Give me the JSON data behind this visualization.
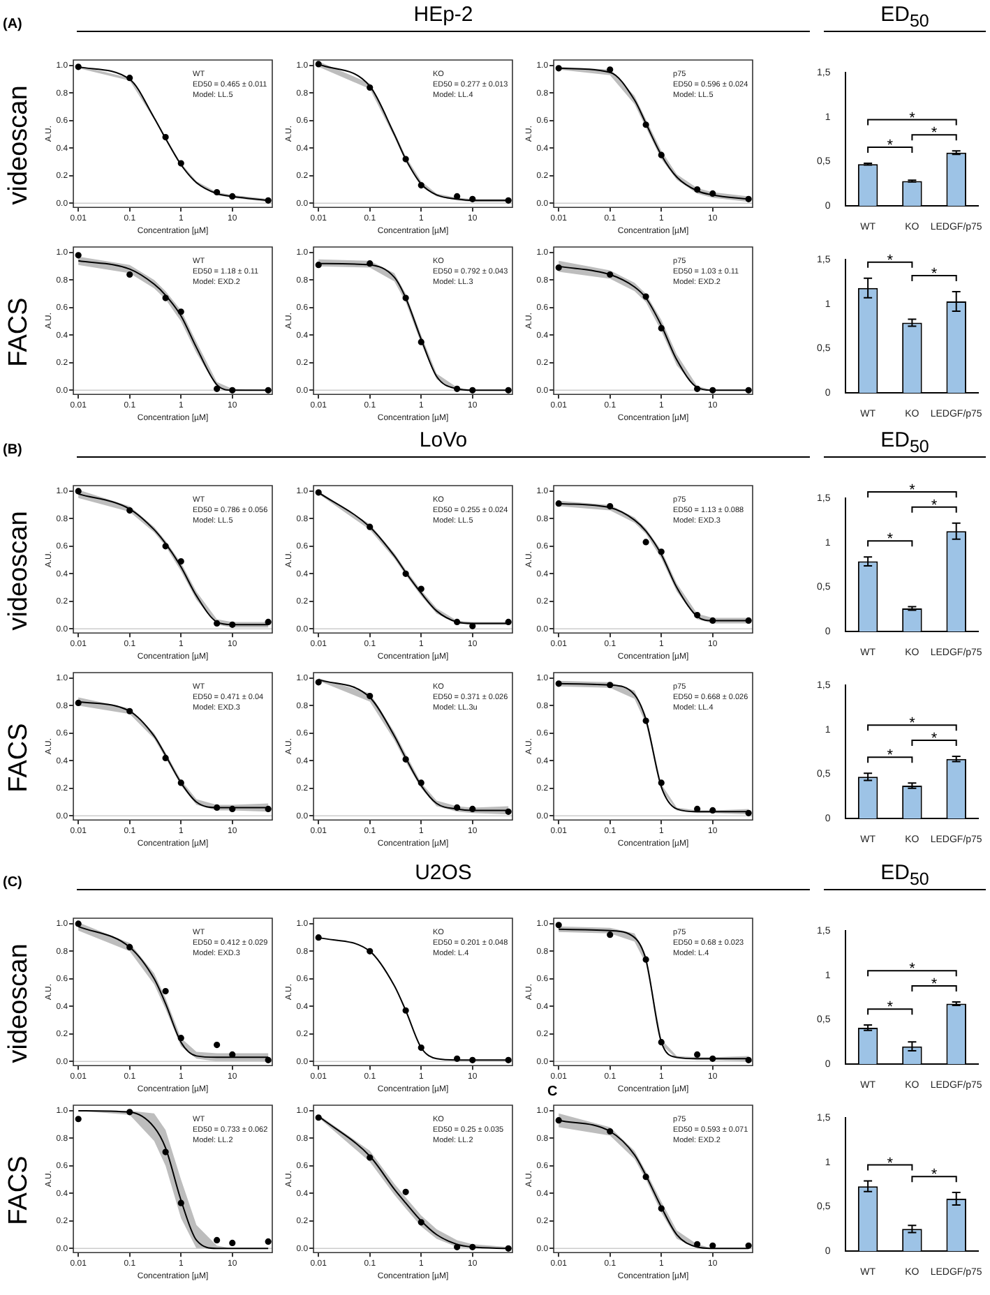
{
  "chart_data": [
    {
      "type": "line",
      "xlabel": "Concentration [µM]",
      "ylabel": "A.U.",
      "log": "x",
      "xlim": [
        0.008,
        60
      ],
      "xticks": [
        0.01,
        0.1,
        1,
        10
      ],
      "ylim": [
        -0.03,
        1.04
      ],
      "yticks": [
        {
          "value": 0,
          "label": "0.0"
        },
        0.2,
        0.4,
        0.6,
        0.8,
        {
          "value": 1,
          "label": "1.0"
        }
      ],
      "ref_lines": [
        {
          "axis": "y",
          "value": 0,
          "color": "#cccccc"
        }
      ],
      "annotations": [
        "WT",
        "ED50 = 0.465 ± 0.011",
        "Model: LL.5",
        "videoscan",
        "(A)"
      ],
      "series": [
        {
          "type": "scatter",
          "marker": "circle",
          "color": "#000000",
          "x": [
            0.01,
            0.1,
            0.5,
            1,
            5,
            10,
            50
          ],
          "values": [
            0.99,
            0.91,
            0.48,
            0.29,
            0.08,
            0.05,
            0.02
          ]
        },
        {
          "type": "line",
          "color": "#000000",
          "x": [
            0.01,
            0.1,
            0.3,
            0.5,
            1,
            2,
            5,
            10,
            50
          ],
          "values": [
            0.99,
            0.9,
            0.62,
            0.47,
            0.28,
            0.15,
            0.07,
            0.05,
            0.02
          ],
          "lower": [
            0.98,
            0.89,
            0.61,
            0.46,
            0.27,
            0.14,
            0.06,
            0.04,
            0.01
          ],
          "upper": [
            1.0,
            0.91,
            0.63,
            0.48,
            0.29,
            0.16,
            0.08,
            0.06,
            0.03
          ]
        }
      ]
    },
    {
      "type": "line",
      "title": "HEp-2",
      "xlabel": "Concentration [µM]",
      "ylabel": "A.U.",
      "log": "x",
      "xlim": [
        0.008,
        60
      ],
      "xticks": [
        0.01,
        0.1,
        1,
        10
      ],
      "ylim": [
        -0.03,
        1.04
      ],
      "yticks": [
        {
          "value": 0,
          "label": "0.0"
        },
        0.2,
        0.4,
        0.6,
        0.8,
        {
          "value": 1,
          "label": "1.0"
        }
      ],
      "ref_lines": [
        {
          "axis": "y",
          "value": 0,
          "color": "#cccccc"
        }
      ],
      "annotations": [
        "KO",
        "ED50 = 0.277 ± 0.013",
        "Model: LL.4"
      ],
      "series": [
        {
          "type": "scatter",
          "marker": "circle",
          "color": "#000000",
          "x": [
            0.01,
            0.1,
            0.5,
            1,
            5,
            10,
            50
          ],
          "values": [
            1.01,
            0.84,
            0.32,
            0.13,
            0.05,
            0.03,
            0.02
          ]
        },
        {
          "type": "line",
          "color": "#000000",
          "x": [
            0.01,
            0.1,
            0.3,
            0.5,
            1,
            2,
            5,
            10,
            50
          ],
          "values": [
            1.01,
            0.85,
            0.5,
            0.32,
            0.14,
            0.06,
            0.03,
            0.02,
            0.02
          ],
          "lower": [
            0.99,
            0.83,
            0.48,
            0.3,
            0.12,
            0.05,
            0.02,
            0.01,
            0.01
          ],
          "upper": [
            1.03,
            0.87,
            0.52,
            0.34,
            0.16,
            0.07,
            0.04,
            0.03,
            0.03
          ]
        }
      ]
    },
    {
      "type": "line",
      "xlabel": "Concentration [µM]",
      "ylabel": "A.U.",
      "log": "x",
      "xlim": [
        0.008,
        60
      ],
      "xticks": [
        0.01,
        0.1,
        1,
        10
      ],
      "ylim": [
        -0.03,
        1.04
      ],
      "yticks": [
        {
          "value": 0,
          "label": "0.0"
        },
        0.2,
        0.4,
        0.6,
        0.8,
        {
          "value": 1,
          "label": "1.0"
        }
      ],
      "ref_lines": [
        {
          "axis": "y",
          "value": 0,
          "color": "#cccccc"
        }
      ],
      "annotations": [
        "p75",
        "ED50 = 0.596 ± 0.024",
        "Model: LL.5"
      ],
      "series": [
        {
          "type": "scatter",
          "marker": "circle",
          "color": "#000000",
          "x": [
            0.01,
            0.1,
            0.5,
            1,
            5,
            10,
            50
          ],
          "values": [
            0.98,
            0.97,
            0.57,
            0.35,
            0.1,
            0.07,
            0.03
          ]
        },
        {
          "type": "line",
          "color": "#000000",
          "x": [
            0.01,
            0.1,
            0.3,
            0.5,
            1,
            2,
            5,
            10,
            50
          ],
          "values": [
            0.98,
            0.95,
            0.75,
            0.58,
            0.35,
            0.19,
            0.09,
            0.06,
            0.03
          ],
          "lower": [
            0.97,
            0.93,
            0.72,
            0.55,
            0.32,
            0.17,
            0.07,
            0.04,
            0.01
          ],
          "upper": [
            0.99,
            0.97,
            0.78,
            0.61,
            0.38,
            0.21,
            0.11,
            0.08,
            0.05
          ]
        }
      ]
    },
    {
      "type": "bar",
      "title": "ED$_{50}$",
      "categories": [
        "WT",
        "KO",
        "LEDGF/p75"
      ],
      "values": [
        0.47,
        0.28,
        0.6
      ],
      "errors": [
        0.01,
        0.01,
        0.02
      ],
      "color": "#9dc3e6",
      "ylim": [
        0,
        1.5
      ],
      "yticks": [
        0,
        {
          "value": 0.5,
          "label": "0,5"
        },
        1,
        {
          "value": 1.5,
          "label": "1,5"
        }
      ],
      "annotations": [
        "*",
        "*",
        "*"
      ]
    },
    {
      "type": "line",
      "xlabel": "Concentration [µM]",
      "ylabel": "A.U.",
      "log": "x",
      "xlim": [
        0.008,
        60
      ],
      "xticks": [
        0.01,
        0.1,
        1,
        10
      ],
      "ylim": [
        -0.03,
        1.04
      ],
      "yticks": [
        {
          "value": 0,
          "label": "0.0"
        },
        0.2,
        0.4,
        0.6,
        0.8,
        {
          "value": 1,
          "label": "1.0"
        }
      ],
      "ref_lines": [
        {
          "axis": "y",
          "value": 0,
          "color": "#cccccc"
        }
      ],
      "annotations": [
        "WT",
        "ED50 = 1.18 ± 0.11",
        "Model: EXD.2",
        "FACS"
      ],
      "series": [
        {
          "type": "scatter",
          "marker": "circle",
          "color": "#000000",
          "x": [
            0.01,
            0.1,
            0.5,
            1,
            5,
            10,
            50
          ],
          "values": [
            0.98,
            0.84,
            0.67,
            0.57,
            0.01,
            0.0,
            0.0
          ]
        },
        {
          "type": "line",
          "color": "#000000",
          "x": [
            0.01,
            0.1,
            0.3,
            0.5,
            1,
            2,
            5,
            10,
            50
          ],
          "values": [
            0.94,
            0.88,
            0.77,
            0.69,
            0.54,
            0.31,
            0.04,
            0.0,
            0.0
          ],
          "lower": [
            0.91,
            0.85,
            0.74,
            0.66,
            0.5,
            0.27,
            0.02,
            0.0,
            0.0
          ],
          "upper": [
            0.97,
            0.91,
            0.8,
            0.72,
            0.58,
            0.35,
            0.06,
            0.01,
            0.0
          ]
        }
      ]
    },
    {
      "type": "line",
      "xlabel": "Concentration [µM]",
      "ylabel": "A.U.",
      "log": "x",
      "xlim": [
        0.008,
        60
      ],
      "xticks": [
        0.01,
        0.1,
        1,
        10
      ],
      "ylim": [
        -0.03,
        1.04
      ],
      "yticks": [
        {
          "value": 0,
          "label": "0.0"
        },
        0.2,
        0.4,
        0.6,
        0.8,
        {
          "value": 1,
          "label": "1.0"
        }
      ],
      "ref_lines": [
        {
          "axis": "y",
          "value": 0,
          "color": "#cccccc"
        }
      ],
      "annotations": [
        "KO",
        "ED50 = 0.792 ± 0.043",
        "Model: LL.3"
      ],
      "series": [
        {
          "type": "scatter",
          "marker": "circle",
          "color": "#000000",
          "x": [
            0.01,
            0.1,
            0.5,
            1,
            5,
            10,
            50
          ],
          "values": [
            0.91,
            0.92,
            0.67,
            0.35,
            0.01,
            0.0,
            0.0
          ]
        },
        {
          "type": "line",
          "color": "#000000",
          "x": [
            0.01,
            0.1,
            0.3,
            0.5,
            1,
            2,
            5,
            10,
            50
          ],
          "values": [
            0.92,
            0.91,
            0.82,
            0.67,
            0.37,
            0.1,
            0.01,
            0.0,
            0.0
          ],
          "lower": [
            0.9,
            0.89,
            0.79,
            0.64,
            0.34,
            0.08,
            0.0,
            0.0,
            0.0
          ],
          "upper": [
            0.95,
            0.94,
            0.85,
            0.7,
            0.4,
            0.12,
            0.02,
            0.0,
            0.0
          ]
        }
      ]
    },
    {
      "type": "line",
      "xlabel": "Concentration [µM]",
      "ylabel": "A.U.",
      "log": "x",
      "xlim": [
        0.008,
        60
      ],
      "xticks": [
        0.01,
        0.1,
        1,
        10
      ],
      "ylim": [
        -0.03,
        1.04
      ],
      "yticks": [
        {
          "value": 0,
          "label": "0.0"
        },
        0.2,
        0.4,
        0.6,
        0.8,
        {
          "value": 1,
          "label": "1.0"
        }
      ],
      "ref_lines": [
        {
          "axis": "y",
          "value": 0,
          "color": "#cccccc"
        }
      ],
      "annotations": [
        "p75",
        "ED50 = 1.03 ± 0.11",
        "Model: EXD.2"
      ],
      "series": [
        {
          "type": "scatter",
          "marker": "circle",
          "color": "#000000",
          "x": [
            0.01,
            0.1,
            0.5,
            1,
            5,
            10,
            50
          ],
          "values": [
            0.89,
            0.84,
            0.68,
            0.45,
            0.01,
            0.0,
            0.0
          ]
        },
        {
          "type": "line",
          "color": "#000000",
          "x": [
            0.01,
            0.1,
            0.3,
            0.5,
            1,
            2,
            5,
            10,
            50
          ],
          "values": [
            0.9,
            0.84,
            0.75,
            0.67,
            0.47,
            0.22,
            0.02,
            0.0,
            0.0
          ],
          "lower": [
            0.86,
            0.81,
            0.72,
            0.64,
            0.43,
            0.18,
            0.01,
            0.0,
            0.0
          ],
          "upper": [
            0.94,
            0.87,
            0.78,
            0.7,
            0.51,
            0.26,
            0.03,
            0.0,
            0.0
          ]
        }
      ]
    },
    {
      "type": "bar",
      "categories": [
        "WT",
        "KO",
        "LEDGF/p75"
      ],
      "values": [
        1.18,
        0.79,
        1.03
      ],
      "errors": [
        0.11,
        0.04,
        0.11
      ],
      "color": "#9dc3e6",
      "ylim": [
        0,
        1.5
      ],
      "yticks": [
        0,
        {
          "value": 0.5,
          "label": "0,5"
        },
        1,
        {
          "value": 1.5,
          "label": "1,5"
        }
      ],
      "annotations": [
        "*",
        "*"
      ]
    },
    {
      "type": "line",
      "xlabel": "Concentration [µM]",
      "ylabel": "A.U.",
      "log": "x",
      "xlim": [
        0.008,
        60
      ],
      "xticks": [
        0.01,
        0.1,
        1,
        10
      ],
      "ylim": [
        -0.03,
        1.04
      ],
      "yticks": [
        {
          "value": 0,
          "label": "0.0"
        },
        0.2,
        0.4,
        0.6,
        0.8,
        {
          "value": 1,
          "label": "1.0"
        }
      ],
      "ref_lines": [
        {
          "axis": "y",
          "value": 0,
          "color": "#cccccc"
        }
      ],
      "annotations": [
        "WT",
        "ED50 = 0.786 ± 0.056",
        "Model: LL.5",
        "videoscan",
        "(B)"
      ],
      "series": [
        {
          "type": "scatter",
          "marker": "circle",
          "color": "#000000",
          "x": [
            0.01,
            0.1,
            0.5,
            1,
            5,
            10,
            50
          ],
          "values": [
            1.0,
            0.86,
            0.6,
            0.49,
            0.04,
            0.03,
            0.05
          ]
        },
        {
          "type": "line",
          "color": "#000000",
          "x": [
            0.01,
            0.1,
            0.3,
            0.5,
            1,
            2,
            5,
            10,
            50
          ],
          "values": [
            0.98,
            0.87,
            0.72,
            0.62,
            0.45,
            0.24,
            0.05,
            0.03,
            0.03
          ],
          "lower": [
            0.95,
            0.85,
            0.7,
            0.6,
            0.42,
            0.21,
            0.03,
            0.01,
            0.01
          ],
          "upper": [
            1.01,
            0.89,
            0.74,
            0.64,
            0.48,
            0.27,
            0.07,
            0.05,
            0.05
          ]
        }
      ]
    },
    {
      "type": "line",
      "title": "LoVo",
      "xlabel": "Concentration [µM]",
      "ylabel": "A.U.",
      "log": "x",
      "xlim": [
        0.008,
        60
      ],
      "xticks": [
        0.01,
        0.1,
        1,
        10
      ],
      "ylim": [
        -0.03,
        1.04
      ],
      "yticks": [
        {
          "value": 0,
          "label": "0.0"
        },
        0.2,
        0.4,
        0.6,
        0.8,
        {
          "value": 1,
          "label": "1.0"
        }
      ],
      "ref_lines": [
        {
          "axis": "y",
          "value": 0,
          "color": "#cccccc"
        }
      ],
      "annotations": [
        "KO",
        "ED50 = 0.255 ± 0.024",
        "Model: LL.5"
      ],
      "series": [
        {
          "type": "scatter",
          "marker": "circle",
          "color": "#000000",
          "x": [
            0.01,
            0.1,
            0.5,
            1,
            5,
            10,
            50
          ],
          "values": [
            0.99,
            0.74,
            0.4,
            0.29,
            0.05,
            0.02,
            0.05
          ]
        },
        {
          "type": "line",
          "color": "#000000",
          "x": [
            0.01,
            0.1,
            0.3,
            0.5,
            1,
            2,
            5,
            10,
            50
          ],
          "values": [
            0.99,
            0.74,
            0.53,
            0.41,
            0.26,
            0.13,
            0.05,
            0.04,
            0.04
          ],
          "lower": [
            0.98,
            0.72,
            0.51,
            0.39,
            0.24,
            0.11,
            0.04,
            0.03,
            0.03
          ],
          "upper": [
            1.0,
            0.76,
            0.55,
            0.43,
            0.28,
            0.15,
            0.06,
            0.05,
            0.05
          ]
        }
      ]
    },
    {
      "type": "line",
      "xlabel": "Concentration [µM]",
      "ylabel": "A.U.",
      "log": "x",
      "xlim": [
        0.008,
        60
      ],
      "xticks": [
        0.01,
        0.1,
        1,
        10
      ],
      "ylim": [
        -0.03,
        1.04
      ],
      "yticks": [
        {
          "value": 0,
          "label": "0.0"
        },
        0.2,
        0.4,
        0.6,
        0.8,
        {
          "value": 1,
          "label": "1.0"
        }
      ],
      "ref_lines": [
        {
          "axis": "y",
          "value": 0,
          "color": "#cccccc"
        }
      ],
      "annotations": [
        "p75",
        "ED50 = 1.13 ± 0.088",
        "Model: EXD.3"
      ],
      "series": [
        {
          "type": "scatter",
          "marker": "circle",
          "color": "#000000",
          "x": [
            0.01,
            0.1,
            0.5,
            1,
            5,
            10,
            50
          ],
          "values": [
            0.91,
            0.89,
            0.63,
            0.56,
            0.1,
            0.06,
            0.06
          ]
        },
        {
          "type": "line",
          "color": "#000000",
          "x": [
            0.01,
            0.1,
            0.3,
            0.5,
            1,
            2,
            5,
            10,
            50
          ],
          "values": [
            0.91,
            0.88,
            0.79,
            0.71,
            0.54,
            0.3,
            0.09,
            0.06,
            0.06
          ],
          "lower": [
            0.89,
            0.86,
            0.77,
            0.69,
            0.51,
            0.27,
            0.07,
            0.04,
            0.04
          ],
          "upper": [
            0.93,
            0.9,
            0.81,
            0.73,
            0.57,
            0.33,
            0.11,
            0.08,
            0.08
          ]
        }
      ]
    },
    {
      "type": "bar",
      "title": "ED$_{50}$",
      "categories": [
        "WT",
        "KO",
        "LEDGF/p75"
      ],
      "values": [
        0.79,
        0.26,
        1.13
      ],
      "errors": [
        0.05,
        0.02,
        0.09
      ],
      "color": "#9dc3e6",
      "ylim": [
        0,
        1.5
      ],
      "yticks": [
        0,
        {
          "value": 0.5,
          "label": "0,5"
        },
        1,
        {
          "value": 1.5,
          "label": "1,5"
        }
      ],
      "annotations": [
        "*",
        "*",
        "*"
      ]
    },
    {
      "type": "line",
      "xlabel": "Concentration [µM]",
      "ylabel": "A.U.",
      "log": "x",
      "xlim": [
        0.008,
        60
      ],
      "xticks": [
        0.01,
        0.1,
        1,
        10
      ],
      "ylim": [
        -0.03,
        1.04
      ],
      "yticks": [
        {
          "value": 0,
          "label": "0.0"
        },
        0.2,
        0.4,
        0.6,
        0.8,
        {
          "value": 1,
          "label": "1.0"
        }
      ],
      "ref_lines": [
        {
          "axis": "y",
          "value": 0,
          "color": "#cccccc"
        }
      ],
      "annotations": [
        "WT",
        "ED50 = 0.471 ± 0.04",
        "Model: EXD.3",
        "FACS"
      ],
      "series": [
        {
          "type": "scatter",
          "marker": "circle",
          "color": "#000000",
          "x": [
            0.01,
            0.1,
            0.5,
            1,
            5,
            10,
            50
          ],
          "values": [
            0.82,
            0.76,
            0.42,
            0.24,
            0.06,
            0.05,
            0.05
          ]
        },
        {
          "type": "line",
          "color": "#000000",
          "x": [
            0.01,
            0.1,
            0.3,
            0.5,
            1,
            2,
            5,
            10,
            50
          ],
          "values": [
            0.83,
            0.76,
            0.58,
            0.44,
            0.24,
            0.1,
            0.06,
            0.06,
            0.06
          ],
          "lower": [
            0.8,
            0.74,
            0.56,
            0.42,
            0.22,
            0.08,
            0.04,
            0.04,
            0.03
          ],
          "upper": [
            0.86,
            0.78,
            0.6,
            0.46,
            0.26,
            0.12,
            0.08,
            0.08,
            0.09
          ]
        }
      ]
    },
    {
      "type": "line",
      "xlabel": "Concentration [µM]",
      "ylabel": "A.U.",
      "log": "x",
      "xlim": [
        0.008,
        60
      ],
      "xticks": [
        0.01,
        0.1,
        1,
        10
      ],
      "ylim": [
        -0.03,
        1.04
      ],
      "yticks": [
        {
          "value": 0,
          "label": "0.0"
        },
        0.2,
        0.4,
        0.6,
        0.8,
        {
          "value": 1,
          "label": "1.0"
        }
      ],
      "ref_lines": [
        {
          "axis": "y",
          "value": 0,
          "color": "#cccccc"
        }
      ],
      "annotations": [
        "KO",
        "ED50 = 0.371 ± 0.026",
        "Model: LL.3u"
      ],
      "series": [
        {
          "type": "scatter",
          "marker": "circle",
          "color": "#000000",
          "x": [
            0.01,
            0.1,
            0.5,
            1,
            5,
            10,
            50
          ],
          "values": [
            0.97,
            0.87,
            0.41,
            0.24,
            0.06,
            0.05,
            0.03
          ]
        },
        {
          "type": "line",
          "color": "#000000",
          "x": [
            0.01,
            0.1,
            0.3,
            0.5,
            1,
            2,
            5,
            10,
            50
          ],
          "values": [
            0.99,
            0.86,
            0.58,
            0.42,
            0.22,
            0.09,
            0.05,
            0.04,
            0.04
          ],
          "lower": [
            0.98,
            0.83,
            0.55,
            0.39,
            0.2,
            0.07,
            0.03,
            0.02,
            0.01
          ],
          "upper": [
            1.0,
            0.89,
            0.61,
            0.45,
            0.24,
            0.11,
            0.07,
            0.06,
            0.07
          ]
        }
      ]
    },
    {
      "type": "line",
      "xlabel": "Concentration [µM]",
      "ylabel": "A.U.",
      "log": "x",
      "xlim": [
        0.008,
        60
      ],
      "xticks": [
        0.01,
        0.1,
        1,
        10
      ],
      "ylim": [
        -0.03,
        1.04
      ],
      "yticks": [
        {
          "value": 0,
          "label": "0.0"
        },
        0.2,
        0.4,
        0.6,
        0.8,
        {
          "value": 1,
          "label": "1.0"
        }
      ],
      "ref_lines": [
        {
          "axis": "y",
          "value": 0,
          "color": "#cccccc"
        }
      ],
      "annotations": [
        "p75",
        "ED50 = 0.668 ± 0.026",
        "Model: LL.4"
      ],
      "series": [
        {
          "type": "scatter",
          "marker": "circle",
          "color": "#000000",
          "x": [
            0.01,
            0.1,
            0.5,
            1,
            5,
            10,
            50
          ],
          "values": [
            0.96,
            0.95,
            0.69,
            0.24,
            0.05,
            0.04,
            0.02
          ]
        },
        {
          "type": "line",
          "color": "#000000",
          "x": [
            0.01,
            0.1,
            0.3,
            0.5,
            1,
            2,
            5,
            10,
            50
          ],
          "values": [
            0.96,
            0.95,
            0.88,
            0.7,
            0.21,
            0.05,
            0.03,
            0.03,
            0.03
          ],
          "lower": [
            0.94,
            0.93,
            0.85,
            0.67,
            0.19,
            0.04,
            0.02,
            0.02,
            0.01
          ],
          "upper": [
            0.98,
            0.97,
            0.91,
            0.73,
            0.23,
            0.06,
            0.04,
            0.04,
            0.05
          ]
        }
      ]
    },
    {
      "type": "bar",
      "categories": [
        "WT",
        "KO",
        "LEDGF/p75"
      ],
      "values": [
        0.47,
        0.37,
        0.67
      ],
      "errors": [
        0.04,
        0.03,
        0.03
      ],
      "color": "#9dc3e6",
      "ylim": [
        0,
        1.5
      ],
      "yticks": [
        0,
        {
          "value": 0.5,
          "label": "0,5"
        },
        1,
        {
          "value": 1.5,
          "label": "1,5"
        }
      ],
      "annotations": [
        "*",
        "*",
        "*"
      ]
    },
    {
      "type": "line",
      "xlabel": "Concentration [µM]",
      "ylabel": "A.U.",
      "log": "x",
      "xlim": [
        0.008,
        60
      ],
      "xticks": [
        0.01,
        0.1,
        1,
        10
      ],
      "ylim": [
        -0.03,
        1.04
      ],
      "yticks": [
        {
          "value": 0,
          "label": "0.0"
        },
        0.2,
        0.4,
        0.6,
        0.8,
        {
          "value": 1,
          "label": "1.0"
        }
      ],
      "ref_lines": [
        {
          "axis": "y",
          "value": 0,
          "color": "#cccccc"
        }
      ],
      "annotations": [
        "WT",
        "ED50 = 0.412 ± 0.029",
        "Model: EXD.3",
        "videoscan",
        "(C)"
      ],
      "series": [
        {
          "type": "scatter",
          "marker": "circle",
          "color": "#000000",
          "x": [
            0.01,
            0.1,
            0.5,
            1,
            5,
            10,
            50
          ],
          "values": [
            1.0,
            0.83,
            0.51,
            0.17,
            0.12,
            0.05,
            0.01
          ]
        },
        {
          "type": "line",
          "color": "#000000",
          "x": [
            0.01,
            0.1,
            0.3,
            0.5,
            1,
            2,
            5,
            10,
            50
          ],
          "values": [
            0.98,
            0.83,
            0.6,
            0.42,
            0.14,
            0.04,
            0.03,
            0.03,
            0.03
          ],
          "lower": [
            0.95,
            0.8,
            0.56,
            0.38,
            0.11,
            0.02,
            0.0,
            0.0,
            0.0
          ],
          "upper": [
            1.01,
            0.86,
            0.64,
            0.46,
            0.17,
            0.07,
            0.06,
            0.06,
            0.06
          ]
        }
      ]
    },
    {
      "type": "line",
      "title": "U2OS",
      "xlabel": "Concentration [µM]",
      "ylabel": "A.U.",
      "log": "x",
      "xlim": [
        0.008,
        60
      ],
      "xticks": [
        0.01,
        0.1,
        1,
        10
      ],
      "ylim": [
        -0.03,
        1.04
      ],
      "yticks": [
        {
          "value": 0,
          "label": "0.0"
        },
        0.2,
        0.4,
        0.6,
        0.8,
        {
          "value": 1,
          "label": "1.0"
        }
      ],
      "ref_lines": [
        {
          "axis": "y",
          "value": 0,
          "color": "#cccccc"
        }
      ],
      "annotations": [
        "KO",
        "ED50 = 0.201 ± 0.048",
        "Model: L.4"
      ],
      "series": [
        {
          "type": "scatter",
          "marker": "circle",
          "color": "#000000",
          "x": [
            0.01,
            0.1,
            0.5,
            1,
            5,
            10,
            50
          ],
          "values": [
            0.9,
            0.8,
            0.37,
            0.1,
            0.02,
            0.01,
            0.01
          ]
        },
        {
          "type": "line",
          "color": "#000000",
          "x": [
            0.01,
            0.1,
            0.3,
            0.5,
            1,
            2,
            5,
            10,
            50
          ],
          "values": [
            0.9,
            0.8,
            0.55,
            0.37,
            0.1,
            0.02,
            0.01,
            0.01,
            0.01
          ]
        }
      ]
    },
    {
      "type": "line",
      "xlabel": "Concentration [µM]",
      "ylabel": "A.U.",
      "log": "x",
      "xlim": [
        0.008,
        60
      ],
      "xticks": [
        0.01,
        0.1,
        1,
        10
      ],
      "ylim": [
        -0.03,
        1.04
      ],
      "yticks": [
        {
          "value": 0,
          "label": "0.0"
        },
        0.2,
        0.4,
        0.6,
        0.8,
        {
          "value": 1,
          "label": "1.0"
        }
      ],
      "ref_lines": [
        {
          "axis": "y",
          "value": 0,
          "color": "#cccccc"
        }
      ],
      "annotations": [
        "p75",
        "ED50 = 0.68 ± 0.023",
        "Model: L.4"
      ],
      "series": [
        {
          "type": "scatter",
          "marker": "circle",
          "color": "#000000",
          "x": [
            0.01,
            0.1,
            0.5,
            1,
            5,
            10,
            50
          ],
          "values": [
            0.99,
            0.92,
            0.74,
            0.14,
            0.05,
            0.02,
            0.01
          ]
        },
        {
          "type": "line",
          "color": "#000000",
          "x": [
            0.01,
            0.1,
            0.3,
            0.5,
            1,
            2,
            5,
            10,
            50
          ],
          "values": [
            0.96,
            0.95,
            0.9,
            0.74,
            0.14,
            0.03,
            0.02,
            0.02,
            0.02
          ],
          "lower": [
            0.94,
            0.93,
            0.87,
            0.71,
            0.12,
            0.02,
            0.01,
            0.01,
            0.0
          ],
          "upper": [
            0.98,
            0.97,
            0.93,
            0.77,
            0.16,
            0.04,
            0.03,
            0.03,
            0.04
          ]
        }
      ]
    },
    {
      "type": "bar",
      "title": "ED$_{50}$",
      "categories": [
        "WT",
        "KO",
        "LEDGF/p75"
      ],
      "values": [
        0.41,
        0.2,
        0.68
      ],
      "errors": [
        0.03,
        0.05,
        0.02
      ],
      "color": "#9dc3e6",
      "ylim": [
        0,
        1.5
      ],
      "yticks": [
        0,
        {
          "value": 0.5,
          "label": "0,5"
        },
        1,
        {
          "value": 1.5,
          "label": "1,5"
        }
      ],
      "annotations": [
        "*",
        "*",
        "*"
      ]
    },
    {
      "type": "line",
      "xlabel": "Concentration [µM]",
      "ylabel": "A.U.",
      "log": "x",
      "xlim": [
        0.008,
        60
      ],
      "xticks": [
        0.01,
        0.1,
        1,
        10
      ],
      "ylim": [
        -0.03,
        1.04
      ],
      "yticks": [
        {
          "value": 0,
          "label": "0.0"
        },
        0.2,
        0.4,
        0.6,
        0.8,
        {
          "value": 1,
          "label": "1.0"
        }
      ],
      "ref_lines": [
        {
          "axis": "y",
          "value": 0,
          "color": "#cccccc"
        }
      ],
      "annotations": [
        "WT",
        "ED50 = 0.733 ± 0.062",
        "Model: LL.2",
        "FACS"
      ],
      "series": [
        {
          "type": "scatter",
          "marker": "circle",
          "color": "#000000",
          "x": [
            0.01,
            0.1,
            0.5,
            1,
            5,
            10,
            50
          ],
          "values": [
            0.94,
            0.99,
            0.7,
            0.33,
            0.06,
            0.04,
            0.05
          ]
        },
        {
          "type": "line",
          "color": "#000000",
          "x": [
            0.01,
            0.1,
            0.3,
            0.5,
            1,
            2,
            5,
            10,
            50
          ],
          "values": [
            1.0,
            0.99,
            0.88,
            0.73,
            0.35,
            0.06,
            0.0,
            0.0,
            0.0
          ],
          "lower": [
            1.0,
            0.97,
            0.78,
            0.6,
            0.22,
            0.0,
            0.0,
            0.0,
            0.0
          ],
          "upper": [
            1.0,
            1.0,
            0.98,
            0.86,
            0.5,
            0.17,
            0.02,
            0.0,
            0.0
          ]
        }
      ]
    },
    {
      "type": "line",
      "xlabel": "Concentration [µM]",
      "ylabel": "A.U.",
      "log": "x",
      "xlim": [
        0.008,
        60
      ],
      "xticks": [
        0.01,
        0.1,
        1,
        10
      ],
      "ylim": [
        -0.03,
        1.04
      ],
      "yticks": [
        {
          "value": 0,
          "label": "0.0"
        },
        0.2,
        0.4,
        0.6,
        0.8,
        {
          "value": 1,
          "label": "1.0"
        }
      ],
      "ref_lines": [
        {
          "axis": "y",
          "value": 0,
          "color": "#cccccc"
        }
      ],
      "annotations": [
        "KO",
        "ED50 = 0.25 ± 0.035",
        "Model: LL.2"
      ],
      "series": [
        {
          "type": "scatter",
          "marker": "circle",
          "color": "#000000",
          "x": [
            0.01,
            0.1,
            0.5,
            1,
            5,
            10,
            50
          ],
          "values": [
            0.95,
            0.66,
            0.41,
            0.19,
            0.01,
            0.01,
            0.0
          ]
        },
        {
          "type": "line",
          "color": "#000000",
          "x": [
            0.01,
            0.1,
            0.3,
            0.5,
            1,
            2,
            5,
            10,
            50
          ],
          "values": [
            0.96,
            0.67,
            0.43,
            0.33,
            0.2,
            0.1,
            0.03,
            0.01,
            0.0
          ],
          "lower": [
            0.95,
            0.63,
            0.39,
            0.29,
            0.16,
            0.07,
            0.01,
            0.0,
            0.0
          ],
          "upper": [
            0.97,
            0.71,
            0.47,
            0.37,
            0.24,
            0.14,
            0.06,
            0.03,
            0.01
          ]
        }
      ]
    },
    {
      "type": "line",
      "xlabel": "Concentration [µM]",
      "ylabel": "A.U.",
      "log": "x",
      "xlim": [
        0.008,
        60
      ],
      "xticks": [
        0.01,
        0.1,
        1,
        10
      ],
      "ylim": [
        -0.03,
        1.04
      ],
      "yticks": [
        {
          "value": 0,
          "label": "0.0"
        },
        0.2,
        0.4,
        0.6,
        0.8,
        {
          "value": 1,
          "label": "1.0"
        }
      ],
      "ref_lines": [
        {
          "axis": "y",
          "value": 0,
          "color": "#cccccc"
        }
      ],
      "annotations": [
        "p75",
        "ED50 = 0.593 ± 0.071",
        "Model: EXD.2",
        "C"
      ],
      "series": [
        {
          "type": "scatter",
          "marker": "circle",
          "color": "#000000",
          "x": [
            0.01,
            0.1,
            0.5,
            1,
            5,
            10,
            50
          ],
          "values": [
            0.93,
            0.85,
            0.52,
            0.29,
            0.03,
            0.02,
            0.02
          ]
        },
        {
          "type": "line",
          "color": "#000000",
          "x": [
            0.01,
            0.1,
            0.3,
            0.5,
            1,
            2,
            5,
            10,
            50
          ],
          "values": [
            0.93,
            0.85,
            0.68,
            0.53,
            0.3,
            0.1,
            0.01,
            0.0,
            0.0
          ],
          "lower": [
            0.88,
            0.82,
            0.65,
            0.5,
            0.26,
            0.07,
            0.0,
            0.0,
            0.0
          ],
          "upper": [
            0.98,
            0.88,
            0.71,
            0.56,
            0.34,
            0.13,
            0.03,
            0.0,
            0.0
          ]
        }
      ]
    },
    {
      "type": "bar",
      "categories": [
        "WT",
        "KO",
        "LEDGF/p75"
      ],
      "values": [
        0.73,
        0.25,
        0.59
      ],
      "errors": [
        0.06,
        0.04,
        0.07
      ],
      "color": "#9dc3e6",
      "ylim": [
        0,
        1.5
      ],
      "yticks": [
        0,
        {
          "value": 0.5,
          "label": "0,5"
        },
        1,
        {
          "value": 1.5,
          "label": "1,5"
        }
      ],
      "annotations": [
        "*",
        "*"
      ]
    }
  ]
}
